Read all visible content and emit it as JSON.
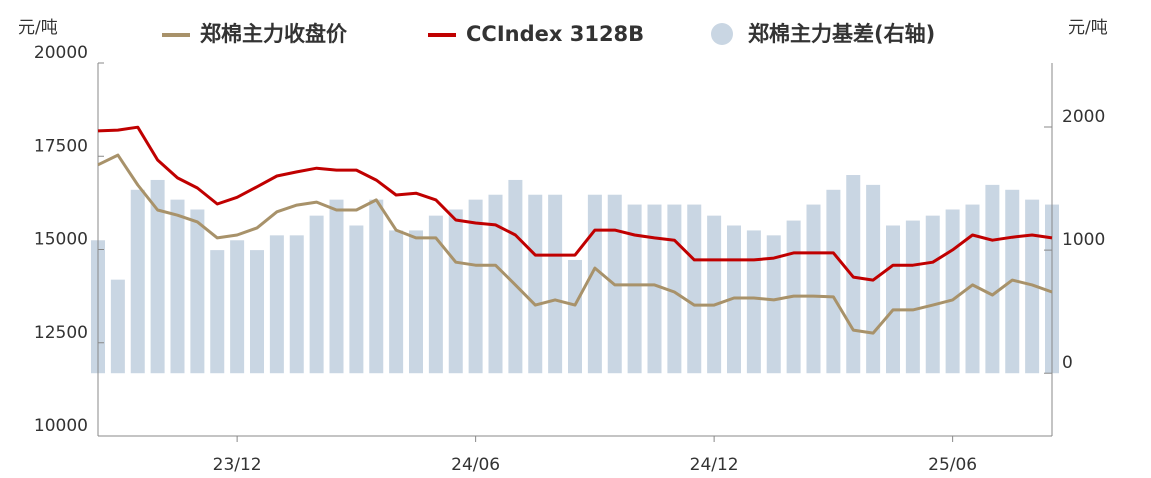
{
  "chart_data": {
    "type": "line",
    "y_unit": "元/吨",
    "y2_unit": "元/吨",
    "categories": [
      null,
      null,
      null,
      null,
      null,
      null,
      null,
      "23/12",
      null,
      null,
      null,
      null,
      null,
      null,
      null,
      null,
      null,
      null,
      null,
      "24/06",
      null,
      null,
      null,
      null,
      null,
      null,
      null,
      null,
      null,
      null,
      null,
      "24/12",
      null,
      null,
      null,
      null,
      null,
      null,
      null,
      null,
      null,
      null,
      null,
      "25/06",
      null,
      null,
      null,
      null,
      null
    ],
    "ylim": [
      10000,
      20000
    ],
    "yticks": [
      10000,
      12500,
      15000,
      17500,
      20000
    ],
    "y2lim": [
      -510,
      2520
    ],
    "y2ticks": [
      0,
      1000,
      2000
    ],
    "series": [
      {
        "name": "郑棉主力收盘价",
        "type": "line",
        "color": "#a8926a",
        "values": [
          17270,
          17530,
          16730,
          16060,
          15920,
          15740,
          15310,
          15390,
          15580,
          16010,
          16190,
          16270,
          16060,
          16060,
          16330,
          15520,
          15310,
          15310,
          14660,
          14580,
          14580,
          14050,
          13510,
          13650,
          13510,
          14500,
          14050,
          14050,
          14050,
          13860,
          13510,
          13510,
          13700,
          13700,
          13650,
          13750,
          13750,
          13730,
          12840,
          12760,
          13380,
          13380,
          13510,
          13650,
          14050,
          13780,
          14180,
          14050,
          13860
        ]
      },
      {
        "name": "CCIndex 3128B",
        "type": "line",
        "color": "#c00000",
        "values": [
          18180,
          18200,
          18280,
          17400,
          16920,
          16650,
          16220,
          16400,
          16680,
          16970,
          17080,
          17180,
          17130,
          17130,
          16860,
          16460,
          16510,
          16330,
          15790,
          15710,
          15660,
          15390,
          14850,
          14850,
          14850,
          15520,
          15520,
          15390,
          15310,
          15250,
          14720,
          14720,
          14720,
          14720,
          14770,
          14910,
          14910,
          14910,
          14260,
          14180,
          14580,
          14580,
          14660,
          14990,
          15390,
          15250,
          15330,
          15390,
          15310
        ]
      },
      {
        "name": "郑棉主力基差(右轴)",
        "type": "bar",
        "axis": "y2",
        "color": "#c9d6e3",
        "values": [
          1080,
          760,
          1490,
          1570,
          1410,
          1330,
          1000,
          1080,
          1000,
          1120,
          1120,
          1280,
          1410,
          1200,
          1410,
          1160,
          1160,
          1280,
          1330,
          1410,
          1450,
          1570,
          1450,
          1450,
          920,
          1450,
          1450,
          1370,
          1370,
          1370,
          1370,
          1280,
          1200,
          1160,
          1120,
          1240,
          1370,
          1490,
          1610,
          1530,
          1200,
          1240,
          1280,
          1330,
          1370,
          1530,
          1490,
          1410,
          1370
        ]
      }
    ]
  }
}
